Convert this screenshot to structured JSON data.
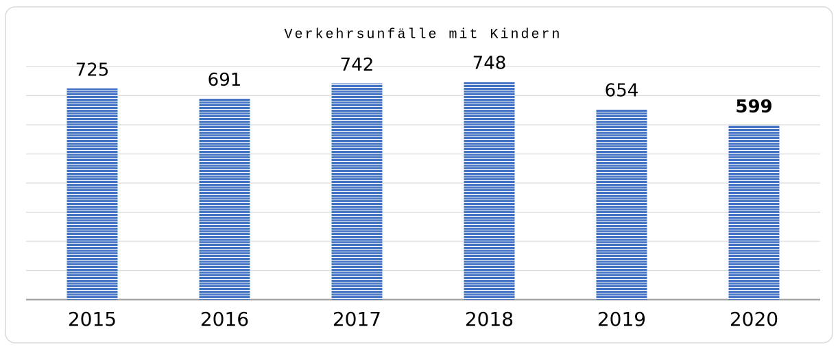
{
  "chart_data": {
    "type": "bar",
    "title": "Verkehrsunfälle mit Kindern",
    "categories": [
      "2015",
      "2016",
      "2017",
      "2018",
      "2019",
      "2020"
    ],
    "values": [
      725,
      691,
      742,
      748,
      654,
      599
    ],
    "emphasized": [
      false,
      false,
      false,
      false,
      false,
      true
    ],
    "color": "#4472c4",
    "ylim": [
      0,
      800
    ],
    "yticks": [
      0,
      100,
      200,
      300,
      400,
      500,
      600,
      700,
      800
    ],
    "grid": true
  }
}
